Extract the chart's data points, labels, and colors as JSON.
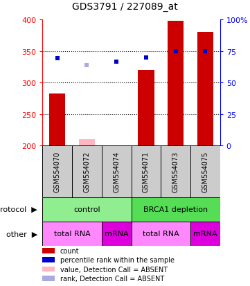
{
  "title": "GDS3791 / 227089_at",
  "samples": [
    "GSM554070",
    "GSM554072",
    "GSM554074",
    "GSM554071",
    "GSM554073",
    "GSM554075"
  ],
  "counts": [
    283,
    210,
    200,
    320,
    398,
    380
  ],
  "count_absent": [
    false,
    true,
    false,
    false,
    false,
    false
  ],
  "ranks": [
    338,
    null,
    333,
    340,
    350,
    350
  ],
  "ranks_absent": [
    null,
    328,
    null,
    null,
    null,
    null
  ],
  "ylim_left": [
    200,
    400
  ],
  "ylim_right": [
    0,
    100
  ],
  "yticks_left": [
    200,
    250,
    300,
    350,
    400
  ],
  "yticks_right": [
    0,
    25,
    50,
    75,
    100
  ],
  "hlines": [
    250,
    300,
    350
  ],
  "protocol_groups": [
    {
      "label": "control",
      "start": 0,
      "end": 3,
      "color": "#90EE90"
    },
    {
      "label": "BRCA1 depletion",
      "start": 3,
      "end": 6,
      "color": "#55DD55"
    }
  ],
  "other_groups": [
    {
      "label": "total RNA",
      "start": 0,
      "end": 2,
      "color": "#FF88FF"
    },
    {
      "label": "mRNA",
      "start": 2,
      "end": 3,
      "color": "#DD00DD"
    },
    {
      "label": "total RNA",
      "start": 3,
      "end": 5,
      "color": "#FF88FF"
    },
    {
      "label": "mRNA",
      "start": 5,
      "end": 6,
      "color": "#DD00DD"
    }
  ],
  "bar_color_present": "#CC0000",
  "bar_color_absent": "#FFB6C1",
  "rank_color_present": "#0000CC",
  "rank_color_absent": "#AAAADD",
  "sample_bg_color": "#CCCCCC",
  "legend": [
    {
      "color": "#CC0000",
      "label": "count"
    },
    {
      "color": "#0000CC",
      "label": "percentile rank within the sample"
    },
    {
      "color": "#FFB6C1",
      "label": "value, Detection Call = ABSENT"
    },
    {
      "color": "#AAAADD",
      "label": "rank, Detection Call = ABSENT"
    }
  ]
}
